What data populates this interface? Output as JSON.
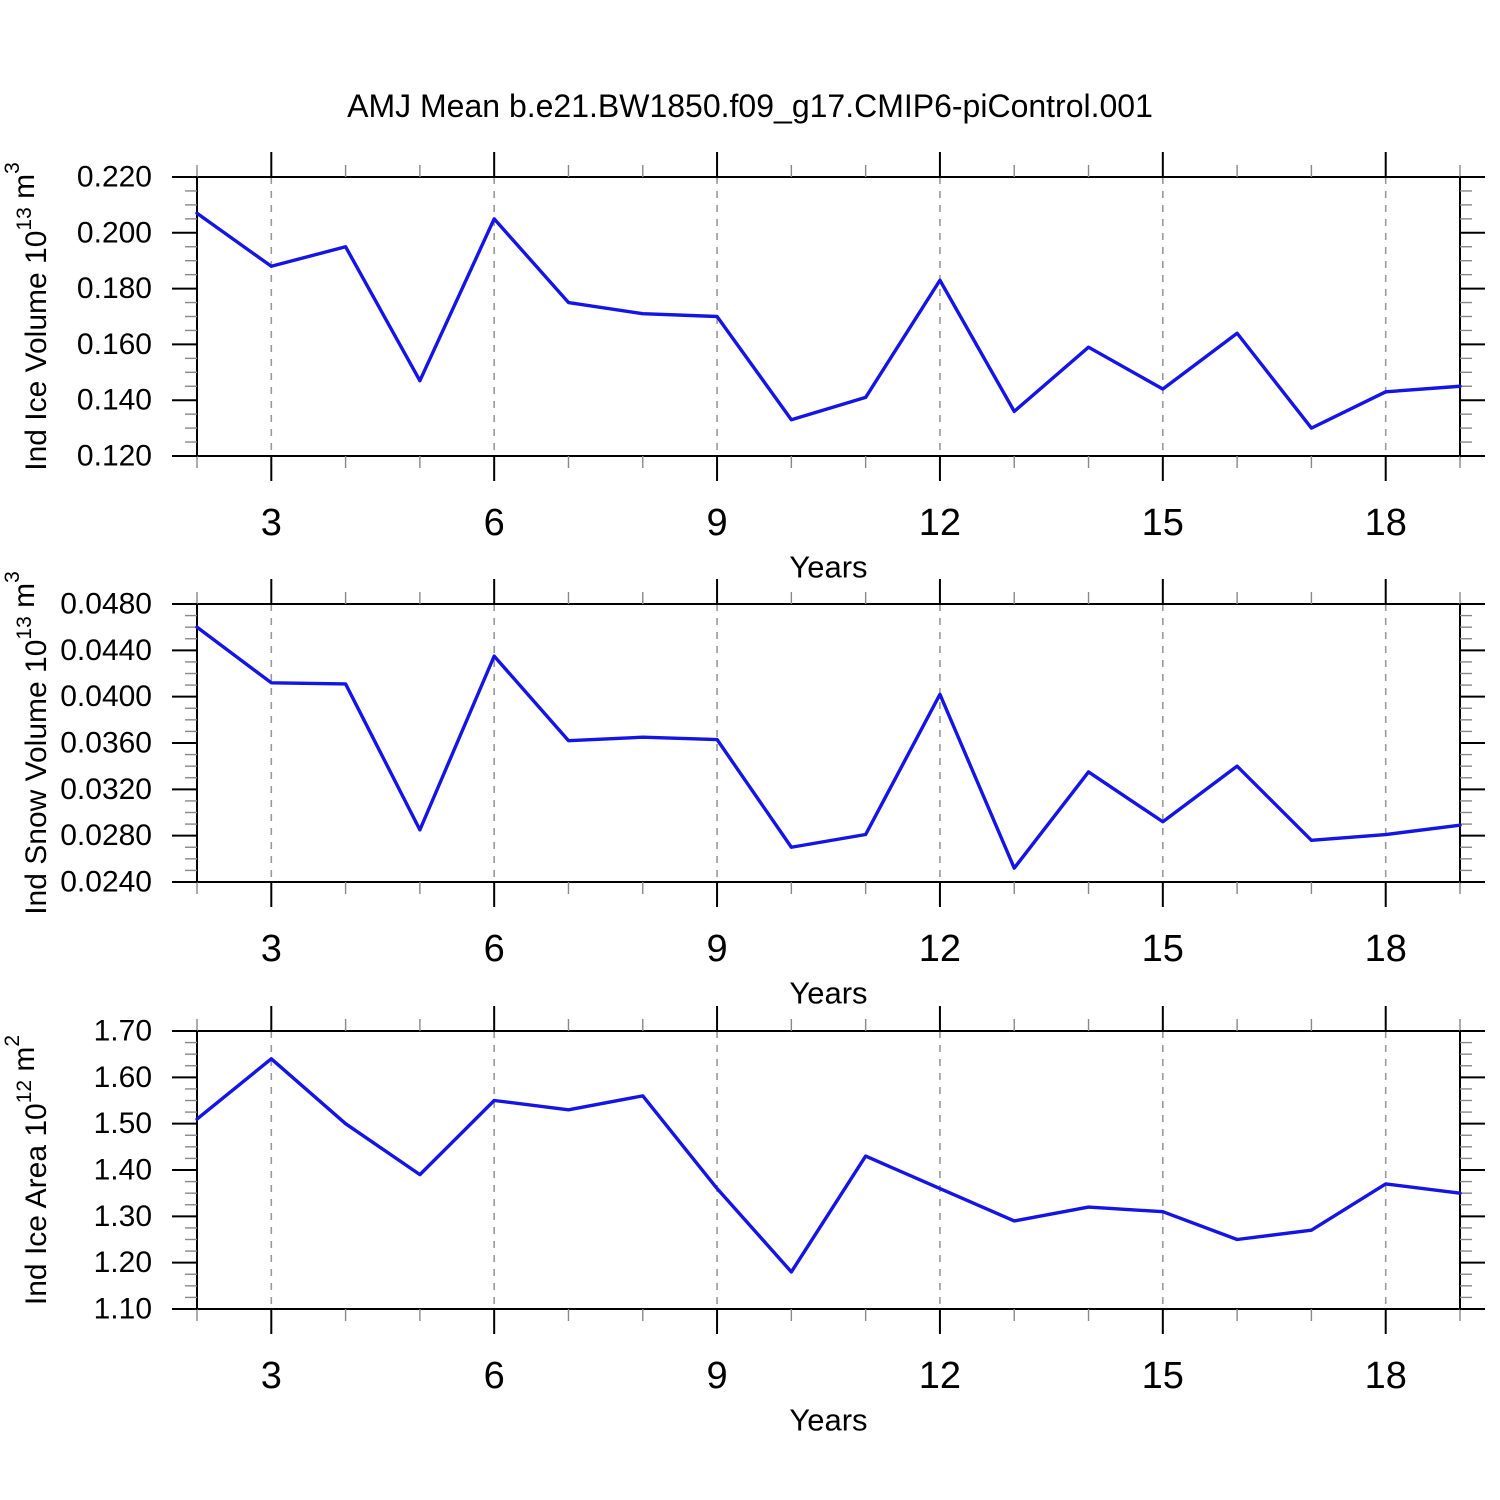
{
  "title": "AMJ Mean b.e21.BW1850.f09_g17.CMIP6-piControl.001",
  "line_color": "#1414e6",
  "grid_color": "#999999",
  "major_tick_color": "#000000",
  "minor_tick_color": "#888888",
  "frame_color": "#000000",
  "x_axis": {
    "label": "Years",
    "range": [
      2,
      19
    ],
    "major_ticks": [
      3,
      6,
      9,
      12,
      15,
      18
    ],
    "major_tick_labels": [
      "3",
      "6",
      "9",
      "12",
      "15",
      "18"
    ],
    "minor_step": 1
  },
  "chart_data": [
    {
      "type": "line",
      "ylabel_text": "Ind Ice Volume 10^13 m^3",
      "ylabel_parts": [
        {
          "t": "Ind Ice Volume 10"
        },
        {
          "t": "13",
          "sup": true
        },
        {
          "t": " m"
        },
        {
          "t": "3",
          "sup": true
        }
      ],
      "ylim": [
        0.12,
        0.22
      ],
      "ytick_values": [
        0.22,
        0.2,
        0.18,
        0.16,
        0.14,
        0.12
      ],
      "ytick_labels": [
        "0.220",
        "0.200",
        "0.180",
        "0.160",
        "0.140",
        "0.120"
      ],
      "y_minor_step": 0.005,
      "xlabel": "Years",
      "x": [
        2,
        3,
        4,
        5,
        6,
        7,
        8,
        9,
        10,
        11,
        12,
        13,
        14,
        15,
        16,
        17,
        18,
        19
      ],
      "values": [
        0.207,
        0.188,
        0.195,
        0.147,
        0.205,
        0.175,
        0.171,
        0.17,
        0.133,
        0.141,
        0.183,
        0.136,
        0.159,
        0.144,
        0.164,
        0.13,
        0.143,
        0.145
      ]
    },
    {
      "type": "line",
      "ylabel_text": "Ind Snow Volume 10^13 m^3",
      "ylabel_parts": [
        {
          "t": "Ind Snow Volume 10"
        },
        {
          "t": "13",
          "sup": true
        },
        {
          "t": " m"
        },
        {
          "t": "3",
          "sup": true
        }
      ],
      "ylim": [
        0.024,
        0.048
      ],
      "ytick_values": [
        0.048,
        0.044,
        0.04,
        0.036,
        0.032,
        0.028,
        0.024
      ],
      "ytick_labels": [
        "0.0480",
        "0.0440",
        "0.0400",
        "0.0360",
        "0.0320",
        "0.0280",
        "0.0240"
      ],
      "y_minor_step": 0.001,
      "xlabel": "Years",
      "x": [
        2,
        3,
        4,
        5,
        6,
        7,
        8,
        9,
        10,
        11,
        12,
        13,
        14,
        15,
        16,
        17,
        18,
        19
      ],
      "values": [
        0.046,
        0.0412,
        0.0411,
        0.0285,
        0.0435,
        0.0362,
        0.0365,
        0.0363,
        0.027,
        0.0281,
        0.0402,
        0.0252,
        0.0335,
        0.0292,
        0.034,
        0.0276,
        0.0281,
        0.0289
      ]
    },
    {
      "type": "line",
      "ylabel_text": "Ind Ice Area 10^12 m^2",
      "ylabel_parts": [
        {
          "t": "Ind Ice Area 10"
        },
        {
          "t": "12",
          "sup": true
        },
        {
          "t": " m"
        },
        {
          "t": "2",
          "sup": true
        }
      ],
      "ylim": [
        1.1,
        1.7
      ],
      "ytick_values": [
        1.7,
        1.6,
        1.5,
        1.4,
        1.3,
        1.2,
        1.1
      ],
      "ytick_labels": [
        "1.70",
        "1.60",
        "1.50",
        "1.40",
        "1.30",
        "1.20",
        "1.10"
      ],
      "y_minor_step": 0.025,
      "xlabel": "Years",
      "x": [
        2,
        3,
        4,
        5,
        6,
        7,
        8,
        9,
        10,
        11,
        12,
        13,
        14,
        15,
        16,
        17,
        18,
        19
      ],
      "values": [
        1.51,
        1.64,
        1.5,
        1.39,
        1.55,
        1.53,
        1.56,
        1.36,
        1.18,
        1.43,
        1.36,
        1.29,
        1.32,
        1.31,
        1.25,
        1.27,
        1.37,
        1.35
      ]
    }
  ]
}
